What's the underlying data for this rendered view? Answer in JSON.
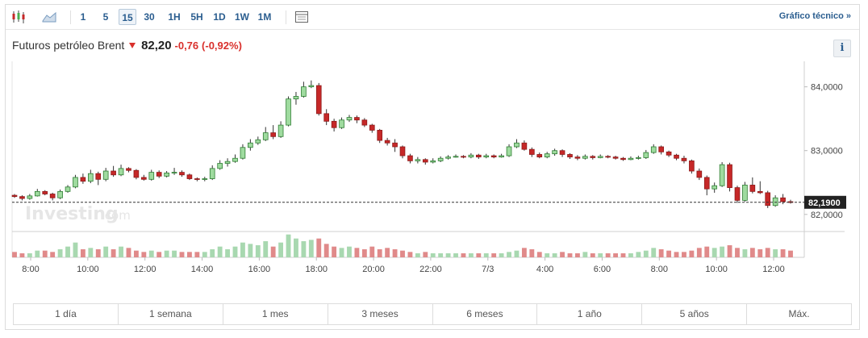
{
  "toolbar": {
    "timeframes": [
      "1",
      "5",
      "15",
      "30",
      "1H",
      "5H",
      "1D",
      "1W",
      "1M"
    ],
    "active_timeframe": "15",
    "tech_link": "Gráfico técnico »"
  },
  "header": {
    "name": "Futuros petróleo Brent",
    "price": "82,20",
    "change": "-0,76",
    "change_pct": "(-0,92%)",
    "info": "i"
  },
  "watermark": {
    "brand": "Investing",
    "suffix": ".com"
  },
  "colors": {
    "up": "#4caf50",
    "up_fill": "#9fdb9f",
    "down": "#c62828",
    "down_fill": "#c62828",
    "vol_up": "#a8d8b0",
    "vol_down": "#e08a8a"
  },
  "chart_data": {
    "type": "candlestick",
    "y_ticks": [
      "84,0000",
      "83,0000",
      "82,0000"
    ],
    "y_tick_values": [
      84,
      83,
      82
    ],
    "ylim": [
      81.77,
      84.4
    ],
    "current_price_label": "82,1900",
    "current_price": 82.19,
    "x_ticks": [
      "8:00",
      "10:00",
      "12:00",
      "14:00",
      "16:00",
      "18:00",
      "20:00",
      "22:00",
      "7/3",
      "4:00",
      "6:00",
      "8:00",
      "10:00",
      "12:00"
    ],
    "candles": [
      [
        82.3,
        82.28,
        82.26,
        82.32
      ],
      [
        82.28,
        82.25,
        82.22,
        82.3
      ],
      [
        82.25,
        82.29,
        82.23,
        82.32
      ],
      [
        82.29,
        82.36,
        82.28,
        82.4
      ],
      [
        82.36,
        82.32,
        82.3,
        82.38
      ],
      [
        82.32,
        82.26,
        82.22,
        82.34
      ],
      [
        82.26,
        82.36,
        82.24,
        82.39
      ],
      [
        82.36,
        82.43,
        82.34,
        82.46
      ],
      [
        82.43,
        82.58,
        82.41,
        82.62
      ],
      [
        82.58,
        82.52,
        82.48,
        82.64
      ],
      [
        82.52,
        82.64,
        82.49,
        82.7
      ],
      [
        82.64,
        82.55,
        82.46,
        82.67
      ],
      [
        82.55,
        82.68,
        82.52,
        82.73
      ],
      [
        82.68,
        82.62,
        82.59,
        82.76
      ],
      [
        82.62,
        82.72,
        82.6,
        82.78
      ],
      [
        82.72,
        82.69,
        82.66,
        82.74
      ],
      [
        82.69,
        82.58,
        82.55,
        82.71
      ],
      [
        82.58,
        82.55,
        82.53,
        82.62
      ],
      [
        82.55,
        82.66,
        82.53,
        82.7
      ],
      [
        82.66,
        82.6,
        82.57,
        82.69
      ],
      [
        82.6,
        82.65,
        82.58,
        82.68
      ],
      [
        82.65,
        82.66,
        82.62,
        82.73
      ],
      [
        82.66,
        82.62,
        82.59,
        82.69
      ],
      [
        82.62,
        82.56,
        82.54,
        82.64
      ],
      [
        82.56,
        82.55,
        82.52,
        82.58
      ],
      [
        82.55,
        82.56,
        82.52,
        82.59
      ],
      [
        82.56,
        82.72,
        82.54,
        82.77
      ],
      [
        82.72,
        82.8,
        82.7,
        82.85
      ],
      [
        82.8,
        82.83,
        82.75,
        82.88
      ],
      [
        82.83,
        82.88,
        82.81,
        82.94
      ],
      [
        82.88,
        83.05,
        82.86,
        83.1
      ],
      [
        83.05,
        83.12,
        83.0,
        83.18
      ],
      [
        83.12,
        83.17,
        83.09,
        83.22
      ],
      [
        83.17,
        83.28,
        83.15,
        83.37
      ],
      [
        83.28,
        83.22,
        83.18,
        83.4
      ],
      [
        83.22,
        83.4,
        83.2,
        83.46
      ],
      [
        83.4,
        83.81,
        83.38,
        83.85
      ],
      [
        83.81,
        83.85,
        83.72,
        83.92
      ],
      [
        83.85,
        84.0,
        83.83,
        84.08
      ],
      [
        84.0,
        84.02,
        83.98,
        84.1
      ],
      [
        84.02,
        83.58,
        83.55,
        84.06
      ],
      [
        83.58,
        83.46,
        83.4,
        83.65
      ],
      [
        83.46,
        83.36,
        83.3,
        83.5
      ],
      [
        83.36,
        83.48,
        83.34,
        83.52
      ],
      [
        83.48,
        83.52,
        83.45,
        83.56
      ],
      [
        83.52,
        83.48,
        83.43,
        83.55
      ],
      [
        83.48,
        83.4,
        83.37,
        83.51
      ],
      [
        83.4,
        83.32,
        83.28,
        83.42
      ],
      [
        83.32,
        83.16,
        83.12,
        83.34
      ],
      [
        83.16,
        83.12,
        83.08,
        83.2
      ],
      [
        83.12,
        83.06,
        82.98,
        83.18
      ],
      [
        83.06,
        82.92,
        82.88,
        83.08
      ],
      [
        82.92,
        82.84,
        82.8,
        82.95
      ],
      [
        82.84,
        82.86,
        82.8,
        82.9
      ],
      [
        82.86,
        82.82,
        82.78,
        82.88
      ],
      [
        82.82,
        82.84,
        82.8,
        82.88
      ],
      [
        82.84,
        82.88,
        82.82,
        82.91
      ],
      [
        82.88,
        82.9,
        82.86,
        82.93
      ],
      [
        82.9,
        82.91,
        82.89,
        82.94
      ],
      [
        82.91,
        82.9,
        82.88,
        82.93
      ],
      [
        82.9,
        82.93,
        82.88,
        82.96
      ],
      [
        82.93,
        82.9,
        82.87,
        82.95
      ],
      [
        82.9,
        82.92,
        82.88,
        82.95
      ],
      [
        82.92,
        82.9,
        82.88,
        82.94
      ],
      [
        82.9,
        82.92,
        82.89,
        82.95
      ],
      [
        82.92,
        83.06,
        82.9,
        83.1
      ],
      [
        83.06,
        83.12,
        83.04,
        83.18
      ],
      [
        83.12,
        83.02,
        83.0,
        83.16
      ],
      [
        83.02,
        82.94,
        82.9,
        83.05
      ],
      [
        82.94,
        82.9,
        82.88,
        82.97
      ],
      [
        82.9,
        82.95,
        82.88,
        82.98
      ],
      [
        82.95,
        83.0,
        82.92,
        83.03
      ],
      [
        83.0,
        82.94,
        82.9,
        83.02
      ],
      [
        82.94,
        82.9,
        82.87,
        82.96
      ],
      [
        82.9,
        82.88,
        82.85,
        82.93
      ],
      [
        82.88,
        82.91,
        82.86,
        82.94
      ],
      [
        82.91,
        82.89,
        82.86,
        82.93
      ],
      [
        82.89,
        82.91,
        82.88,
        82.94
      ],
      [
        82.91,
        82.9,
        82.88,
        82.93
      ],
      [
        82.9,
        82.88,
        82.86,
        82.92
      ],
      [
        82.88,
        82.86,
        82.84,
        82.9
      ],
      [
        82.86,
        82.88,
        82.85,
        82.91
      ],
      [
        82.88,
        82.89,
        82.86,
        82.92
      ],
      [
        82.89,
        82.97,
        82.87,
        83.01
      ],
      [
        82.97,
        83.06,
        82.95,
        83.1
      ],
      [
        83.06,
        82.98,
        82.94,
        83.08
      ],
      [
        82.98,
        82.93,
        82.9,
        83.0
      ],
      [
        82.93,
        82.88,
        82.85,
        82.95
      ],
      [
        82.88,
        82.84,
        82.8,
        82.92
      ],
      [
        82.84,
        82.68,
        82.64,
        82.86
      ],
      [
        82.68,
        82.58,
        82.54,
        82.72
      ],
      [
        82.58,
        82.4,
        82.3,
        82.61
      ],
      [
        82.4,
        82.45,
        82.34,
        82.5
      ],
      [
        82.45,
        82.78,
        82.43,
        82.82
      ],
      [
        82.78,
        82.42,
        82.36,
        82.81
      ],
      [
        82.42,
        82.22,
        82.18,
        82.45
      ],
      [
        82.22,
        82.46,
        82.2,
        82.51
      ],
      [
        82.46,
        82.36,
        82.33,
        82.58
      ],
      [
        82.36,
        82.34,
        82.32,
        82.52
      ],
      [
        82.34,
        82.14,
        82.1,
        82.37
      ],
      [
        82.14,
        82.26,
        82.12,
        82.3
      ],
      [
        82.26,
        82.2,
        82.16,
        82.32
      ],
      [
        82.2,
        82.19,
        82.17,
        82.23
      ]
    ],
    "volume": [
      4,
      3,
      3,
      5,
      5,
      4,
      6,
      8,
      11,
      6,
      7,
      6,
      8,
      6,
      8,
      7,
      5,
      4,
      5,
      4,
      5,
      5,
      4,
      4,
      4,
      4,
      6,
      8,
      6,
      8,
      11,
      10,
      9,
      12,
      8,
      11,
      17,
      14,
      12,
      13,
      14,
      10,
      8,
      7,
      8,
      7,
      6,
      8,
      6,
      7,
      6,
      5,
      4,
      3,
      4,
      3,
      3,
      3,
      3,
      3,
      3,
      3,
      3,
      3,
      3,
      4,
      5,
      7,
      6,
      4,
      3,
      3,
      4,
      3,
      3,
      4,
      3,
      3,
      3,
      3,
      3,
      3,
      4,
      5,
      7,
      6,
      5,
      4,
      4,
      5,
      7,
      8,
      7,
      8,
      9,
      7,
      6,
      7,
      6,
      7,
      6,
      6,
      5
    ],
    "volume_max": 18
  },
  "ranges": [
    "1 día",
    "1 semana",
    "1 mes",
    "3 meses",
    "6 meses",
    "1 año",
    "5 años",
    "Máx."
  ]
}
